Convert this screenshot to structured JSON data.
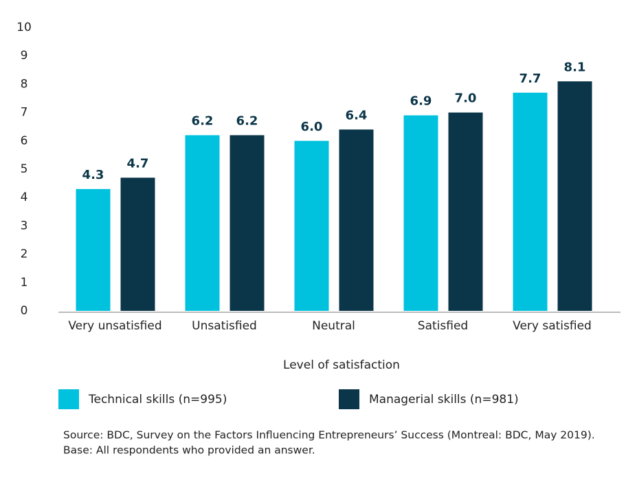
{
  "chart_data": {
    "type": "bar",
    "x_label": "Level of satisfaction",
    "categories": [
      "Very unsatisfied",
      "Unsatisfied",
      "Neutral",
      "Satisfied",
      "Very satisfied"
    ],
    "series": [
      {
        "name": "Technical skills (n=995)",
        "color": "#00c1de",
        "values": [
          4.3,
          6.2,
          6.0,
          6.9,
          7.7
        ],
        "value_labels": [
          "4.3",
          "6.2",
          "6.0",
          "6.9",
          "7.7"
        ]
      },
      {
        "name": "Managerial skills (n=981)",
        "color": "#0b3548",
        "values": [
          4.7,
          6.2,
          6.4,
          7.0,
          8.1
        ],
        "value_labels": [
          "4.7",
          "6.2",
          "6.4",
          "7.0",
          "8.1"
        ]
      }
    ],
    "ylim": [
      0,
      10
    ],
    "yticks": [
      0,
      1,
      2,
      3,
      4,
      5,
      6,
      7,
      8,
      9,
      10
    ],
    "grid": false,
    "footnotes": [
      "Source: BDC, Survey on the Factors Influencing Entrepreneurs’ Success (Montreal: BDC, May 2019).",
      "Base: All respondents who provided an answer."
    ]
  }
}
